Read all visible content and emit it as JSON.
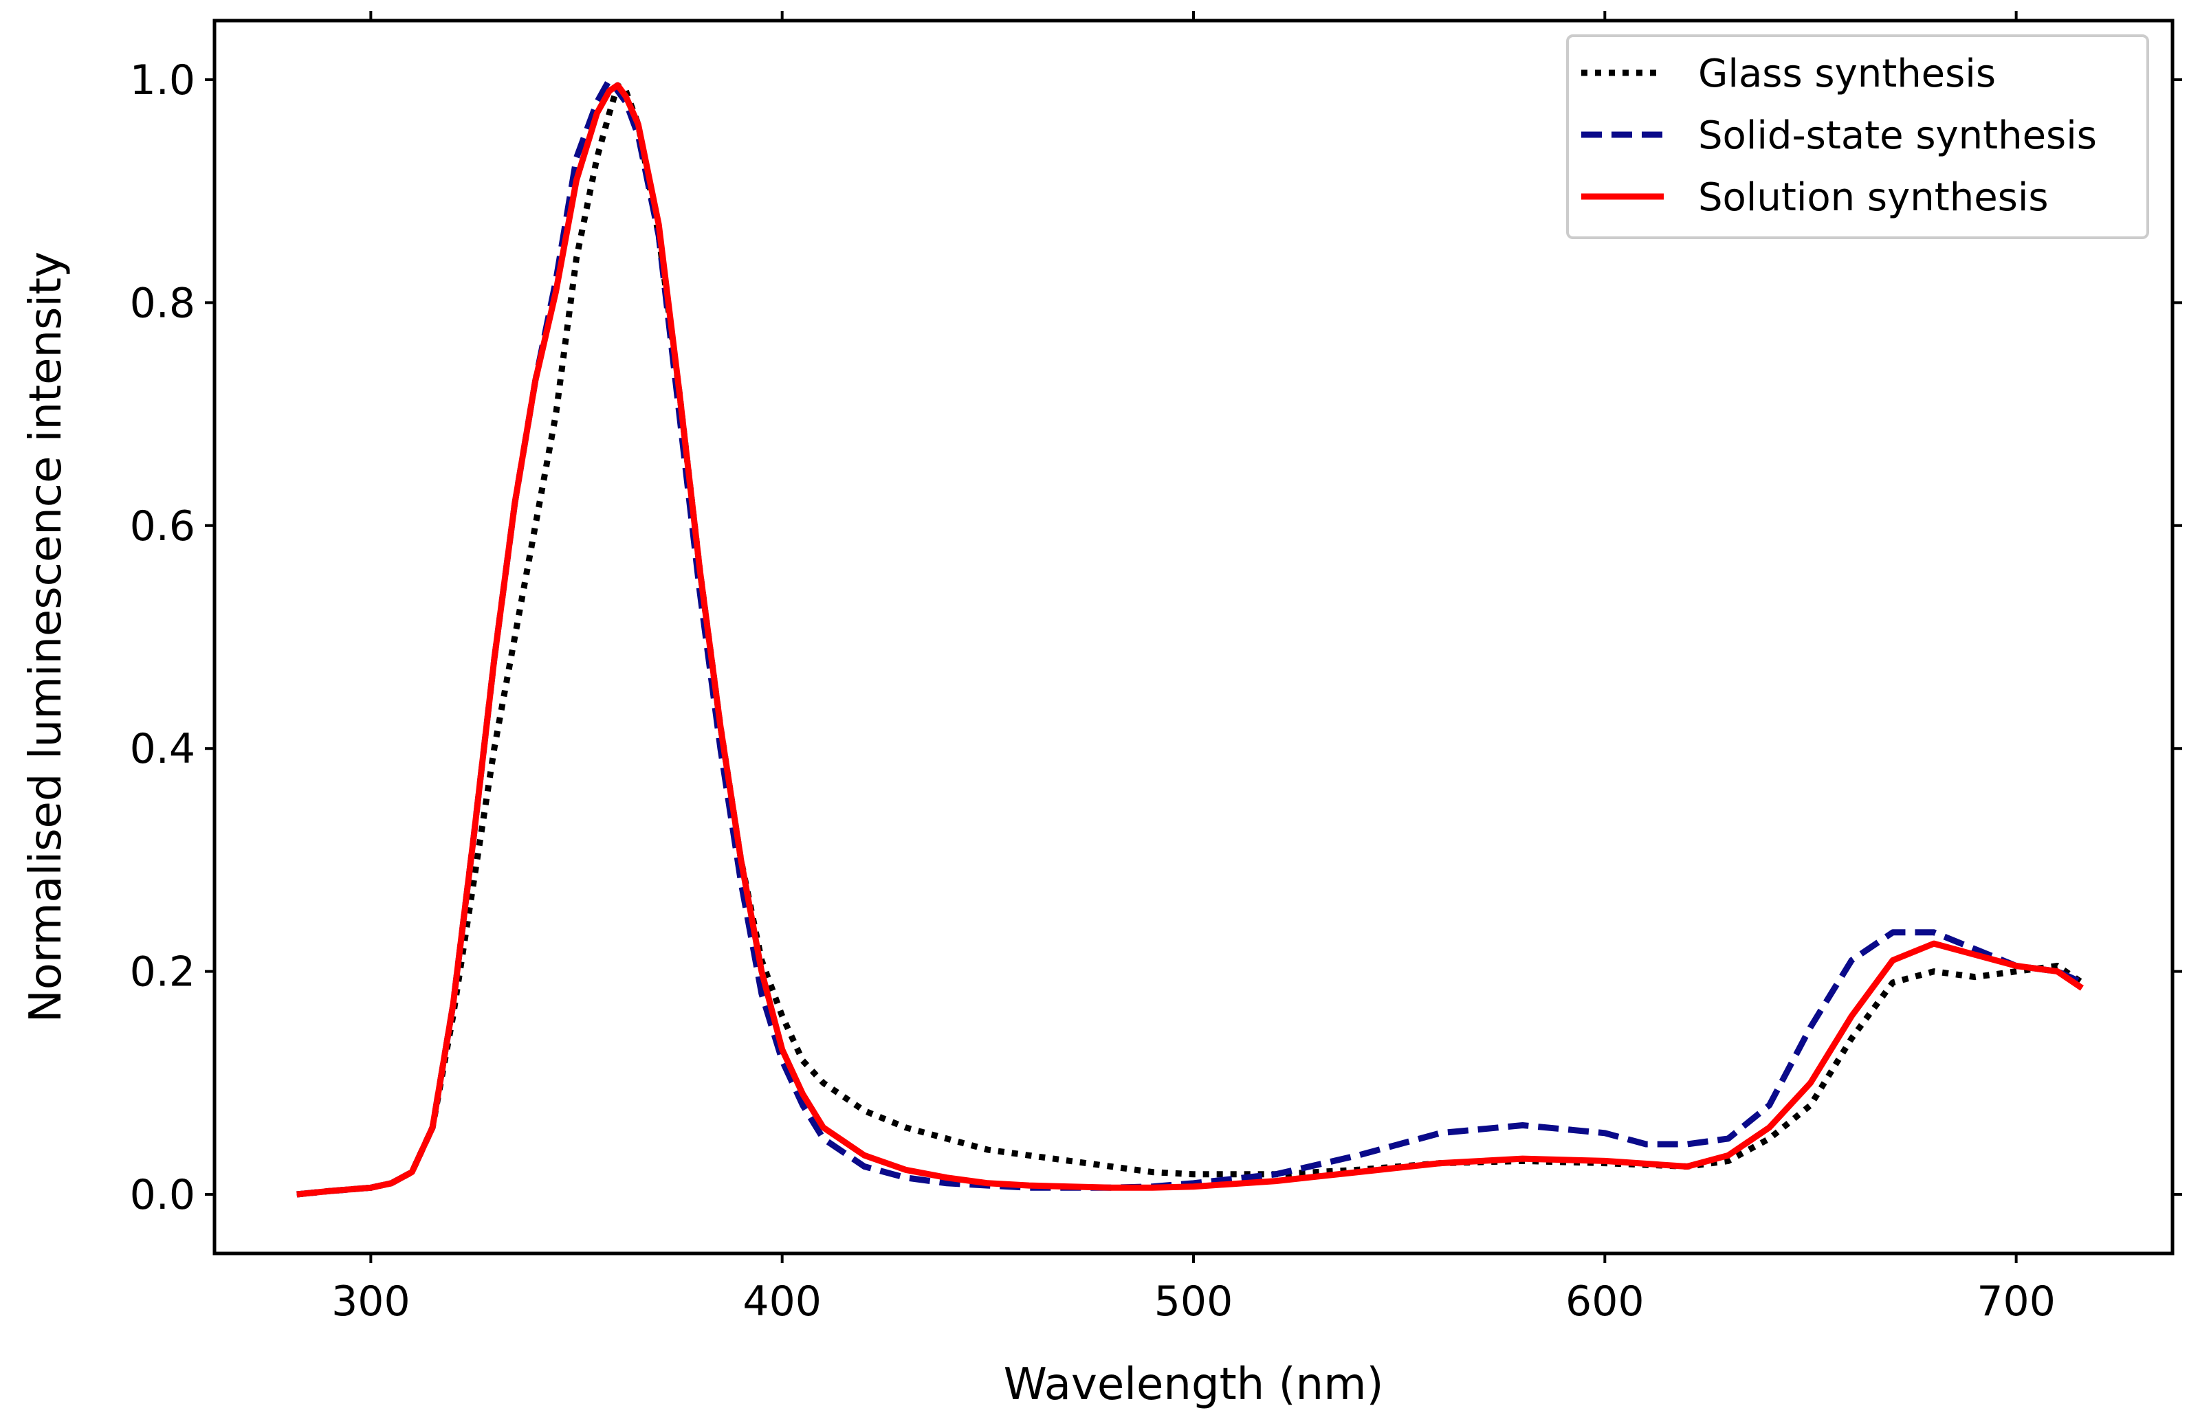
{
  "chart_data": {
    "type": "line",
    "title": "",
    "xlabel": "Wavelength (nm)",
    "ylabel": "Normalised luminescence intensity",
    "xlim": [
      262,
      738
    ],
    "ylim": [
      -0.053,
      1.053
    ],
    "xticks": [
      300,
      400,
      500,
      600,
      700
    ],
    "yticks": [
      0.0,
      0.2,
      0.4,
      0.6,
      0.8,
      1.0
    ],
    "xtick_labels": [
      "300",
      "400",
      "500",
      "600",
      "700"
    ],
    "ytick_labels": [
      "0.0",
      "0.2",
      "0.4",
      "0.6",
      "0.8",
      "1.0"
    ],
    "grid": false,
    "legend_position": "top-right",
    "series": [
      {
        "name": "Glass synthesis",
        "color": "#000000",
        "style": "dotted",
        "x": [
          282,
          290,
          300,
          305,
          310,
          315,
          320,
          325,
          330,
          335,
          340,
          345,
          350,
          355,
          358,
          360,
          362,
          365,
          370,
          375,
          380,
          385,
          390,
          395,
          400,
          405,
          410,
          420,
          430,
          440,
          450,
          460,
          470,
          480,
          490,
          500,
          520,
          540,
          560,
          580,
          600,
          620,
          630,
          640,
          650,
          660,
          670,
          680,
          690,
          700,
          710,
          716
        ],
        "y": [
          0.0,
          0.003,
          0.006,
          0.01,
          0.02,
          0.06,
          0.16,
          0.28,
          0.4,
          0.5,
          0.6,
          0.7,
          0.84,
          0.93,
          0.97,
          0.995,
          0.99,
          0.96,
          0.86,
          0.72,
          0.56,
          0.42,
          0.3,
          0.21,
          0.16,
          0.12,
          0.1,
          0.075,
          0.06,
          0.05,
          0.04,
          0.035,
          0.03,
          0.025,
          0.02,
          0.018,
          0.018,
          0.022,
          0.028,
          0.03,
          0.028,
          0.025,
          0.03,
          0.05,
          0.08,
          0.14,
          0.19,
          0.2,
          0.195,
          0.2,
          0.205,
          0.19
        ]
      },
      {
        "name": "Solid-state synthesis",
        "color": "#0a0a8a",
        "style": "dashed",
        "x": [
          282,
          290,
          300,
          305,
          310,
          315,
          320,
          325,
          330,
          335,
          340,
          345,
          350,
          355,
          358,
          360,
          362,
          365,
          370,
          375,
          380,
          385,
          390,
          395,
          400,
          405,
          410,
          420,
          430,
          440,
          450,
          460,
          470,
          480,
          490,
          500,
          520,
          540,
          560,
          580,
          600,
          610,
          620,
          630,
          640,
          650,
          660,
          670,
          680,
          690,
          700,
          710,
          716
        ],
        "y": [
          0.0,
          0.003,
          0.006,
          0.01,
          0.02,
          0.06,
          0.17,
          0.32,
          0.48,
          0.62,
          0.73,
          0.82,
          0.93,
          0.98,
          1.0,
          0.99,
          0.98,
          0.95,
          0.86,
          0.7,
          0.54,
          0.4,
          0.28,
          0.18,
          0.12,
          0.08,
          0.05,
          0.025,
          0.015,
          0.01,
          0.008,
          0.006,
          0.006,
          0.006,
          0.007,
          0.01,
          0.018,
          0.035,
          0.055,
          0.062,
          0.055,
          0.045,
          0.045,
          0.05,
          0.08,
          0.15,
          0.21,
          0.235,
          0.235,
          0.22,
          0.205,
          0.2,
          0.19
        ]
      },
      {
        "name": "Solution synthesis",
        "color": "#ff0000",
        "style": "solid",
        "x": [
          282,
          290,
          300,
          305,
          310,
          315,
          320,
          325,
          330,
          335,
          340,
          345,
          350,
          355,
          358,
          360,
          362,
          365,
          370,
          375,
          380,
          385,
          390,
          395,
          400,
          405,
          410,
          420,
          430,
          440,
          450,
          460,
          470,
          480,
          490,
          500,
          520,
          540,
          560,
          580,
          600,
          620,
          630,
          640,
          650,
          660,
          670,
          680,
          690,
          700,
          710,
          716
        ],
        "y": [
          0.0,
          0.003,
          0.006,
          0.01,
          0.02,
          0.06,
          0.17,
          0.32,
          0.48,
          0.62,
          0.73,
          0.81,
          0.91,
          0.97,
          0.99,
          0.995,
          0.985,
          0.96,
          0.87,
          0.72,
          0.56,
          0.42,
          0.3,
          0.2,
          0.13,
          0.09,
          0.06,
          0.035,
          0.022,
          0.015,
          0.01,
          0.008,
          0.007,
          0.006,
          0.006,
          0.007,
          0.012,
          0.02,
          0.028,
          0.032,
          0.03,
          0.025,
          0.035,
          0.06,
          0.1,
          0.16,
          0.21,
          0.225,
          0.215,
          0.205,
          0.2,
          0.185
        ]
      }
    ]
  }
}
